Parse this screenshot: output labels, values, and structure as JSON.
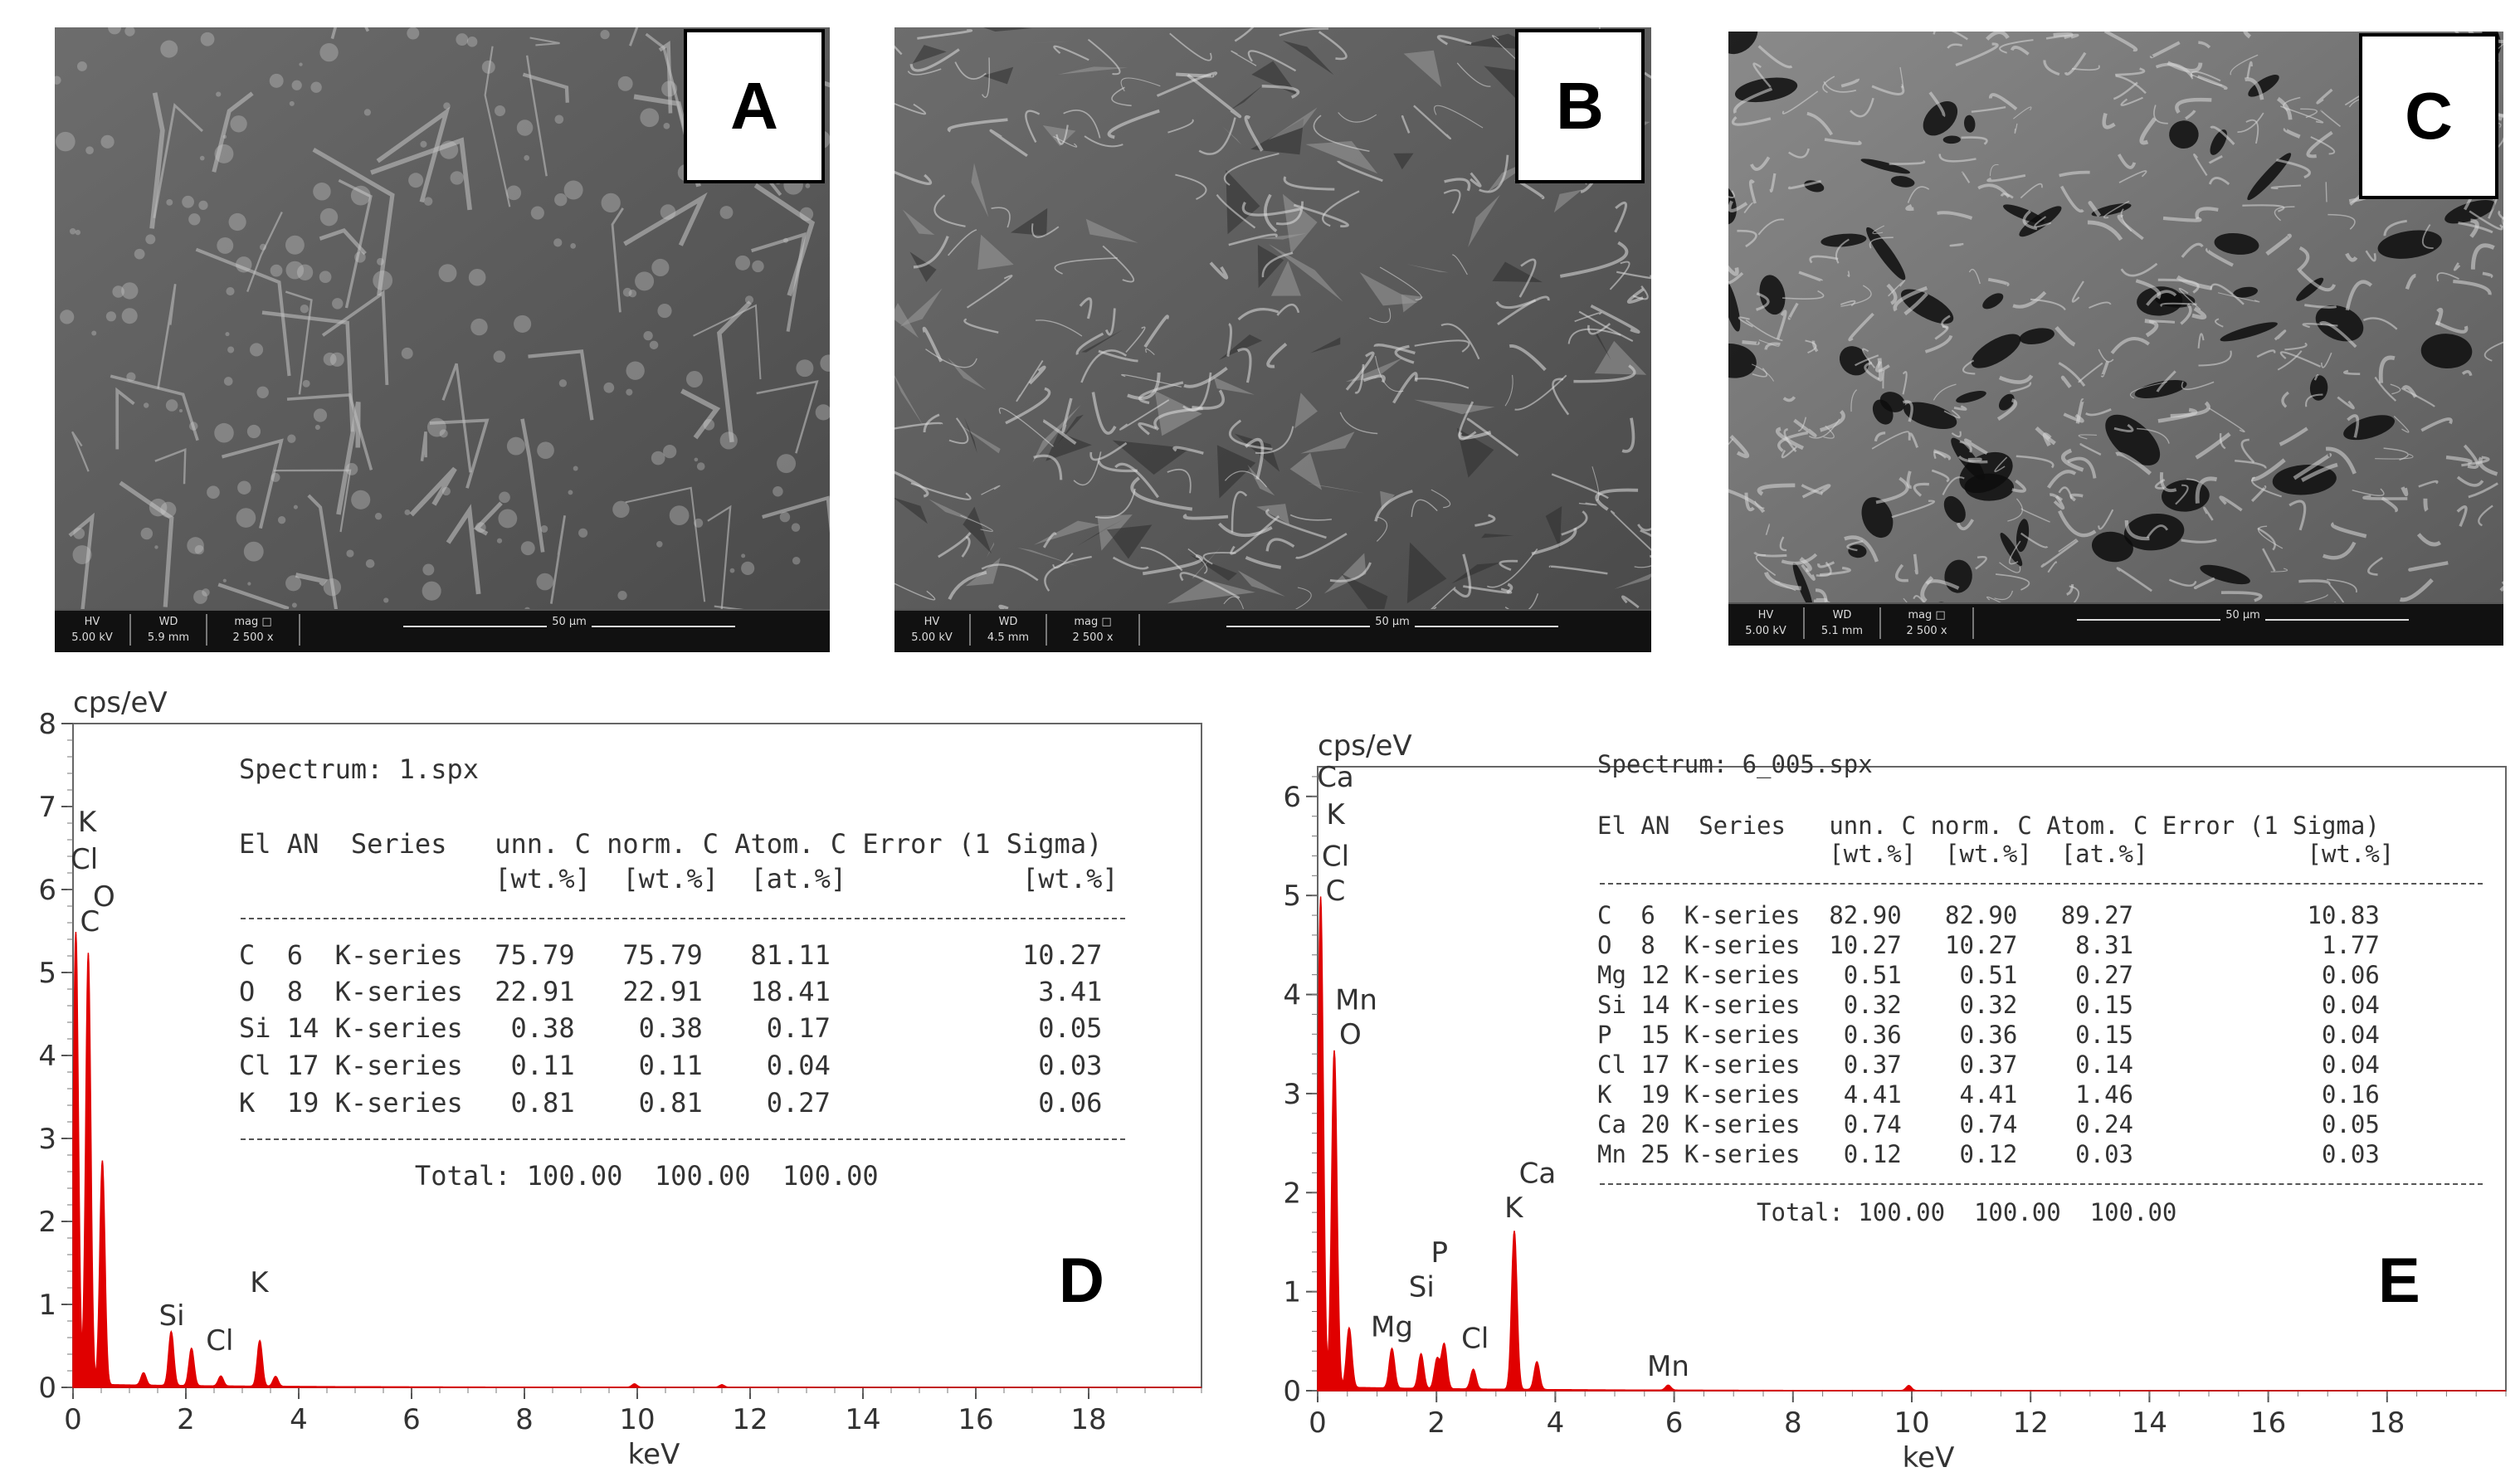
{
  "sem_panels": [
    {
      "letter": "A",
      "hv_label": "HV",
      "hv": "5.00 kV",
      "wd_label": "WD",
      "wd": "5.9 mm",
      "mag_label": "mag □",
      "mag": "2 500 x",
      "scale": "50 µm"
    },
    {
      "letter": "B",
      "hv_label": "HV",
      "hv": "5.00 kV",
      "wd_label": "WD",
      "wd": "4.5 mm",
      "mag_label": "mag □",
      "mag": "2 500 x",
      "scale": "50 µm"
    },
    {
      "letter": "C",
      "hv_label": "HV",
      "hv": "5.00 kV",
      "wd_label": "WD",
      "wd": "5.1 mm",
      "mag_label": "mag □",
      "mag": "2 500 x",
      "scale": "50 µm"
    }
  ],
  "chart_data": [
    {
      "type": "line",
      "panel": "D",
      "xlabel": "keV",
      "ylabel": "cps/eV",
      "xlim": [
        0,
        20
      ],
      "ylim": [
        0,
        8
      ],
      "x_ticks": [
        0,
        2,
        4,
        6,
        8,
        10,
        12,
        14,
        16,
        18
      ],
      "y_ticks": [
        0,
        1,
        2,
        3,
        4,
        5,
        6,
        7,
        8
      ],
      "series": [
        {
          "color": "#e00000",
          "peaks": [
            [
              0.05,
              5.45
            ],
            [
              0.27,
              5.2
            ],
            [
              0.52,
              2.7
            ],
            [
              1.25,
              0.15
            ],
            [
              1.74,
              0.65
            ],
            [
              2.1,
              0.45
            ],
            [
              2.62,
              0.12
            ],
            [
              3.31,
              0.55
            ],
            [
              3.59,
              0.12
            ],
            [
              9.95,
              0.04
            ],
            [
              11.5,
              0.03
            ]
          ]
        }
      ],
      "peak_labels": [
        {
          "text": "K",
          "x": 0.25,
          "y": 6.7
        },
        {
          "text": "Cl",
          "x": 0.2,
          "y": 6.25
        },
        {
          "text": "O",
          "x": 0.55,
          "y": 5.8
        },
        {
          "text": "C",
          "x": 0.3,
          "y": 5.5
        },
        {
          "text": "Si",
          "x": 1.75,
          "y": 0.75
        },
        {
          "text": "Cl",
          "x": 2.6,
          "y": 0.45
        },
        {
          "text": "K",
          "x": 3.3,
          "y": 1.15
        }
      ],
      "report": {
        "spectrum": "Spectrum: 1.spx",
        "header1": "El AN  Series   unn. C norm. C Atom. C Error (1 Sigma)",
        "header2": "                [wt.%]  [wt.%]  [at.%]           [wt.%]",
        "rows": [
          "C  6  K-series  75.79   75.79   81.11            10.27",
          "O  8  K-series  22.91   22.91   18.41             3.41",
          "Si 14 K-series   0.38    0.38    0.17             0.05",
          "Cl 17 K-series   0.11    0.11    0.04             0.03",
          "K  19 K-series   0.81    0.81    0.27             0.06"
        ],
        "total": "           Total: 100.00  100.00  100.00"
      }
    },
    {
      "type": "line",
      "panel": "E",
      "xlabel": "keV",
      "ylabel": "cps/eV",
      "xlim": [
        0,
        20
      ],
      "ylim": [
        0,
        6.3
      ],
      "x_ticks": [
        0,
        2,
        4,
        6,
        8,
        10,
        12,
        14,
        16,
        18
      ],
      "y_ticks": [
        0,
        1,
        2,
        3,
        4,
        5,
        6
      ],
      "series": [
        {
          "color": "#e00000",
          "peaks": [
            [
              0.05,
              4.95
            ],
            [
              0.28,
              3.4
            ],
            [
              0.53,
              0.6
            ],
            [
              1.25,
              0.4
            ],
            [
              1.74,
              0.35
            ],
            [
              2.01,
              0.3
            ],
            [
              2.13,
              0.45
            ],
            [
              2.62,
              0.2
            ],
            [
              3.31,
              1.6
            ],
            [
              3.69,
              0.28
            ],
            [
              5.9,
              0.05
            ],
            [
              9.95,
              0.05
            ]
          ]
        }
      ],
      "peak_labels": [
        {
          "text": "Ca",
          "x": 0.3,
          "y": 6.1
        },
        {
          "text": "K",
          "x": 0.3,
          "y": 5.72
        },
        {
          "text": "Cl",
          "x": 0.3,
          "y": 5.3
        },
        {
          "text": "C",
          "x": 0.3,
          "y": 4.95
        },
        {
          "text": "Mn",
          "x": 0.65,
          "y": 3.85
        },
        {
          "text": "O",
          "x": 0.55,
          "y": 3.5
        },
        {
          "text": "Mg",
          "x": 1.25,
          "y": 0.55
        },
        {
          "text": "Si",
          "x": 1.75,
          "y": 0.95
        },
        {
          "text": "P",
          "x": 2.05,
          "y": 1.3
        },
        {
          "text": "Cl",
          "x": 2.65,
          "y": 0.43
        },
        {
          "text": "K",
          "x": 3.3,
          "y": 1.75
        },
        {
          "text": "Ca",
          "x": 3.7,
          "y": 2.1
        },
        {
          "text": "Mn",
          "x": 5.9,
          "y": 0.15
        }
      ],
      "report": {
        "spectrum": "Spectrum: 6_005.spx",
        "header1": "El AN  Series   unn. C norm. C Atom. C Error (1 Sigma)",
        "header2": "                [wt.%]  [wt.%]  [at.%]           [wt.%]",
        "rows": [
          "C  6  K-series  82.90   82.90   89.27            10.83",
          "O  8  K-series  10.27   10.27    8.31             1.77",
          "Mg 12 K-series   0.51    0.51    0.27             0.06",
          "Si 14 K-series   0.32    0.32    0.15             0.04",
          "P  15 K-series   0.36    0.36    0.15             0.04",
          "Cl 17 K-series   0.37    0.37    0.14             0.04",
          "K  19 K-series   4.41    4.41    1.46             0.16",
          "Ca 20 K-series   0.74    0.74    0.24             0.05",
          "Mn 25 K-series   0.12    0.12    0.03             0.03"
        ],
        "total": "           Total: 100.00  100.00  100.00"
      }
    }
  ]
}
